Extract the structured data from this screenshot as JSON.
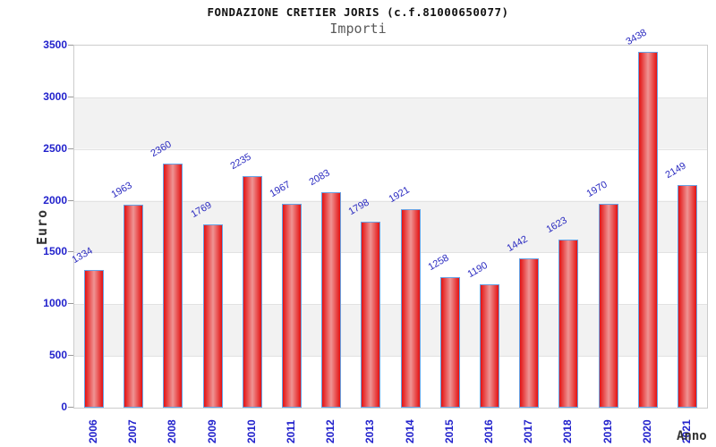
{
  "header": {
    "title": "FONDAZIONE CRETIER JORIS (c.f.81000650077)",
    "subtitle": "Importi"
  },
  "chart_data": {
    "type": "bar",
    "title": "FONDAZIONE CRETIER JORIS (c.f.81000650077)",
    "subtitle": "Importi",
    "xlabel": "Anno",
    "ylabel": "Euro",
    "categories": [
      "2006",
      "2007",
      "2008",
      "2009",
      "2010",
      "2011",
      "2012",
      "2013",
      "2014",
      "2015",
      "2016",
      "2017",
      "2018",
      "2019",
      "2020",
      "2021"
    ],
    "values": [
      1334,
      1963,
      2360,
      1769,
      2235,
      1967,
      2083,
      1798,
      1921,
      1258,
      1190,
      1442,
      1623,
      1970,
      3438,
      2149
    ],
    "ylim": [
      0,
      3500
    ],
    "yticks": [
      0,
      500,
      1000,
      1500,
      2000,
      2500,
      3000,
      3500
    ],
    "grid": "alternating horizontal gray bands every 500, light gridlines",
    "legend": "none",
    "bar_labels_rotation_deg": -30,
    "x_labels_rotation_deg": -90,
    "colors": {
      "bar_edge_red": "#e31212",
      "bar_center_red": "#ef9494",
      "bar_border": "#67a2e4",
      "tick_text": "#2222cc",
      "value_text": "#2a2ac0",
      "band_gray": "#f2f2f2",
      "plot_border": "#cccccc",
      "gridline": "#e2e2e2",
      "tick_mark": "#999999",
      "title_text": "#111111",
      "subtitle_text": "#5a5a5a",
      "axis_title_text": "#333333"
    }
  }
}
